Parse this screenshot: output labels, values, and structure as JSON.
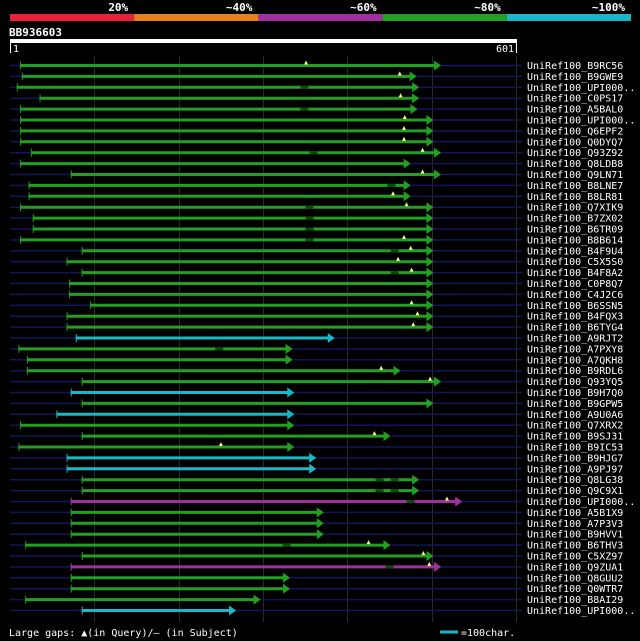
{
  "chart_data": {
    "type": "alignment-overview",
    "query_id": "BB936603",
    "query_start": "1",
    "query_end": "601",
    "query_length": 601,
    "identity_legend": [
      {
        "label": "20%",
        "color": "#e8203a"
      },
      {
        "label": "~40%",
        "color": "#e8801c"
      },
      {
        "label": "~60%",
        "color": "#a030a0"
      },
      {
        "label": "~80%",
        "color": "#22a022"
      },
      {
        "label": "~100%",
        "color": "#18b8c8"
      }
    ],
    "hits": [
      {
        "name": "UniRef100_B9RC56",
        "start": 12,
        "end": 511,
        "color": "#22a022",
        "gaps": [
          {
            "pos": 351,
            "type": "query"
          }
        ]
      },
      {
        "name": "UniRef100_B9GWE9",
        "start": 14,
        "end": 482,
        "color": "#22a022",
        "gaps": [
          {
            "pos": 462,
            "type": "query"
          }
        ]
      },
      {
        "name": "UniRef100_UPI000..",
        "start": 8,
        "end": 485,
        "color": "#22a022",
        "gaps": [
          {
            "pos": 349,
            "type": "subject"
          }
        ]
      },
      {
        "name": "UniRef100_C0PS17",
        "start": 35,
        "end": 485,
        "color": "#22a022",
        "gaps": [
          {
            "pos": 463,
            "type": "query"
          }
        ]
      },
      {
        "name": "UniRef100_A5BAL0",
        "start": 12,
        "end": 483,
        "color": "#22a022",
        "gaps": [
          {
            "pos": 349,
            "type": "subject"
          }
        ]
      },
      {
        "name": "UniRef100_UPI000..",
        "start": 12,
        "end": 502,
        "color": "#22a022",
        "gaps": [
          {
            "pos": 468,
            "type": "query"
          }
        ]
      },
      {
        "name": "UniRef100_Q6EPF2",
        "start": 12,
        "end": 502,
        "color": "#22a022",
        "gaps": [
          {
            "pos": 467,
            "type": "query"
          }
        ]
      },
      {
        "name": "UniRef100_Q0DYQ7",
        "start": 12,
        "end": 502,
        "color": "#22a022",
        "gaps": [
          {
            "pos": 467,
            "type": "query"
          }
        ]
      },
      {
        "name": "UniRef100_Q93Z92",
        "start": 25,
        "end": 511,
        "color": "#22a022",
        "gaps": [
          {
            "pos": 360,
            "type": "subject"
          },
          {
            "pos": 489,
            "type": "query"
          }
        ]
      },
      {
        "name": "UniRef100_Q8LDB8",
        "start": 12,
        "end": 475,
        "color": "#22a022",
        "gaps": []
      },
      {
        "name": "UniRef100_Q9LN71",
        "start": 72,
        "end": 511,
        "color": "#22a022",
        "gaps": [
          {
            "pos": 489,
            "type": "query"
          }
        ]
      },
      {
        "name": "UniRef100_B8LNE7",
        "start": 22,
        "end": 475,
        "color": "#22a022",
        "gaps": [
          {
            "pos": 452,
            "type": "subject"
          }
        ]
      },
      {
        "name": "UniRef100_B8LR81",
        "start": 22,
        "end": 475,
        "color": "#22a022",
        "gaps": [
          {
            "pos": 454,
            "type": "query"
          }
        ]
      },
      {
        "name": "UniRef100_Q7XIK9",
        "start": 12,
        "end": 502,
        "color": "#22a022",
        "gaps": [
          {
            "pos": 355,
            "type": "subject"
          },
          {
            "pos": 470,
            "type": "query"
          }
        ]
      },
      {
        "name": "UniRef100_B7ZX02",
        "start": 27,
        "end": 502,
        "color": "#22a022",
        "gaps": [
          {
            "pos": 355,
            "type": "subject"
          }
        ]
      },
      {
        "name": "UniRef100_B6TR09",
        "start": 27,
        "end": 502,
        "color": "#22a022",
        "gaps": [
          {
            "pos": 355,
            "type": "subject"
          }
        ]
      },
      {
        "name": "UniRef100_B8B614",
        "start": 12,
        "end": 502,
        "color": "#22a022",
        "gaps": [
          {
            "pos": 355,
            "type": "subject"
          },
          {
            "pos": 467,
            "type": "query"
          }
        ]
      },
      {
        "name": "UniRef100_B4F9U4",
        "start": 85,
        "end": 502,
        "color": "#22a022",
        "gaps": [
          {
            "pos": 456,
            "type": "subject"
          },
          {
            "pos": 475,
            "type": "query"
          }
        ]
      },
      {
        "name": "UniRef100_C5X5S0",
        "start": 67,
        "end": 502,
        "color": "#22a022",
        "gaps": [
          {
            "pos": 460,
            "type": "query"
          }
        ]
      },
      {
        "name": "UniRef100_B4F8A2",
        "start": 85,
        "end": 502,
        "color": "#22a022",
        "gaps": [
          {
            "pos": 456,
            "type": "subject"
          },
          {
            "pos": 476,
            "type": "query"
          }
        ]
      },
      {
        "name": "UniRef100_C0P8Q7",
        "start": 70,
        "end": 502,
        "color": "#22a022",
        "gaps": []
      },
      {
        "name": "UniRef100_C4J2C6",
        "start": 70,
        "end": 502,
        "color": "#22a022",
        "gaps": []
      },
      {
        "name": "UniRef100_B6SSN5",
        "start": 95,
        "end": 502,
        "color": "#22a022",
        "gaps": [
          {
            "pos": 476,
            "type": "query"
          }
        ]
      },
      {
        "name": "UniRef100_B4FQX3",
        "start": 67,
        "end": 502,
        "color": "#22a022",
        "gaps": [
          {
            "pos": 483,
            "type": "query"
          }
        ]
      },
      {
        "name": "UniRef100_B6TYG4",
        "start": 67,
        "end": 502,
        "color": "#22a022",
        "gaps": [
          {
            "pos": 478,
            "type": "query"
          }
        ]
      },
      {
        "name": "UniRef100_A9RJT2",
        "start": 78,
        "end": 385,
        "color": "#18b8c8",
        "gaps": []
      },
      {
        "name": "UniRef100_A7PXY8",
        "start": 10,
        "end": 335,
        "color": "#22a022",
        "gaps": [
          {
            "pos": 248,
            "type": "subject"
          }
        ]
      },
      {
        "name": "UniRef100_A7QKH8",
        "start": 20,
        "end": 335,
        "color": "#22a022",
        "gaps": []
      },
      {
        "name": "UniRef100_B9RDL6",
        "start": 20,
        "end": 463,
        "color": "#22a022",
        "gaps": [
          {
            "pos": 440,
            "type": "query"
          }
        ]
      },
      {
        "name": "UniRef100_Q93YQ5",
        "start": 85,
        "end": 511,
        "color": "#22a022",
        "gaps": [
          {
            "pos": 498,
            "type": "query"
          }
        ]
      },
      {
        "name": "UniRef100_B9H7Q0",
        "start": 72,
        "end": 337,
        "color": "#18b8c8",
        "gaps": []
      },
      {
        "name": "UniRef100_B9GPW5",
        "start": 85,
        "end": 502,
        "color": "#22a022",
        "gaps": []
      },
      {
        "name": "UniRef100_A9U0A6",
        "start": 55,
        "end": 337,
        "color": "#18b8c8",
        "gaps": []
      },
      {
        "name": "UniRef100_Q7XRX2",
        "start": 12,
        "end": 337,
        "color": "#22a022",
        "gaps": []
      },
      {
        "name": "UniRef100_B9SJ31",
        "start": 85,
        "end": 451,
        "color": "#22a022",
        "gaps": [
          {
            "pos": 432,
            "type": "query"
          }
        ]
      },
      {
        "name": "UniRef100_B9IC53",
        "start": 10,
        "end": 337,
        "color": "#22a022",
        "gaps": [
          {
            "pos": 250,
            "type": "query"
          }
        ]
      },
      {
        "name": "UniRef100_B9HJG7",
        "start": 67,
        "end": 363,
        "color": "#18b8c8",
        "gaps": []
      },
      {
        "name": "UniRef100_A9PJ97",
        "start": 67,
        "end": 363,
        "color": "#18b8c8",
        "gaps": []
      },
      {
        "name": "UniRef100_Q8LG38",
        "start": 85,
        "end": 485,
        "color": "#22a022",
        "gaps": [
          {
            "pos": 438,
            "type": "subject"
          },
          {
            "pos": 456,
            "type": "subject"
          }
        ]
      },
      {
        "name": "UniRef100_Q9C9X1",
        "start": 85,
        "end": 485,
        "color": "#22a022",
        "gaps": [
          {
            "pos": 438,
            "type": "subject"
          },
          {
            "pos": 456,
            "type": "subject"
          }
        ]
      },
      {
        "name": "UniRef100_UPI000..",
        "start": 72,
        "end": 536,
        "color": "#a030a0",
        "gaps": [
          {
            "pos": 475,
            "type": "subject"
          },
          {
            "pos": 518,
            "type": "query"
          }
        ]
      },
      {
        "name": "UniRef100_A5B1X9",
        "start": 72,
        "end": 372,
        "color": "#22a022",
        "gaps": []
      },
      {
        "name": "UniRef100_A7P3V3",
        "start": 72,
        "end": 372,
        "color": "#22a022",
        "gaps": []
      },
      {
        "name": "UniRef100_B9HVV1",
        "start": 72,
        "end": 372,
        "color": "#22a022",
        "gaps": []
      },
      {
        "name": "UniRef100_B6THV3",
        "start": 18,
        "end": 451,
        "color": "#22a022",
        "gaps": [
          {
            "pos": 328,
            "type": "subject"
          },
          {
            "pos": 425,
            "type": "query"
          }
        ]
      },
      {
        "name": "UniRef100_C5XZ97",
        "start": 85,
        "end": 502,
        "color": "#22a022",
        "gaps": [
          {
            "pos": 490,
            "type": "query"
          }
        ]
      },
      {
        "name": "UniRef100_Q9ZUA1",
        "start": 72,
        "end": 511,
        "color": "#a030a0",
        "gaps": [
          {
            "pos": 450,
            "type": "subject"
          },
          {
            "pos": 497,
            "type": "query"
          }
        ]
      },
      {
        "name": "UniRef100_Q8GUU2",
        "start": 72,
        "end": 332,
        "color": "#22a022",
        "gaps": []
      },
      {
        "name": "UniRef100_Q0WTR7",
        "start": 72,
        "end": 332,
        "color": "#22a022",
        "gaps": []
      },
      {
        "name": "UniRef100_B8AI29",
        "start": 18,
        "end": 297,
        "color": "#22a022",
        "gaps": []
      },
      {
        "name": "UniRef100_UPI000..",
        "start": 85,
        "end": 268,
        "color": "#18b8c8",
        "gaps": []
      }
    ],
    "footer": {
      "gaps_text": "Large gaps: ▲(in Query)/– (in Subject)",
      "scale_text": "=100char."
    },
    "colors": {
      "background": "#000000",
      "row_line": "#10165a",
      "grid": "#2a2a2a",
      "text": "#ffffff",
      "gap_marker": "#ffff80"
    }
  }
}
